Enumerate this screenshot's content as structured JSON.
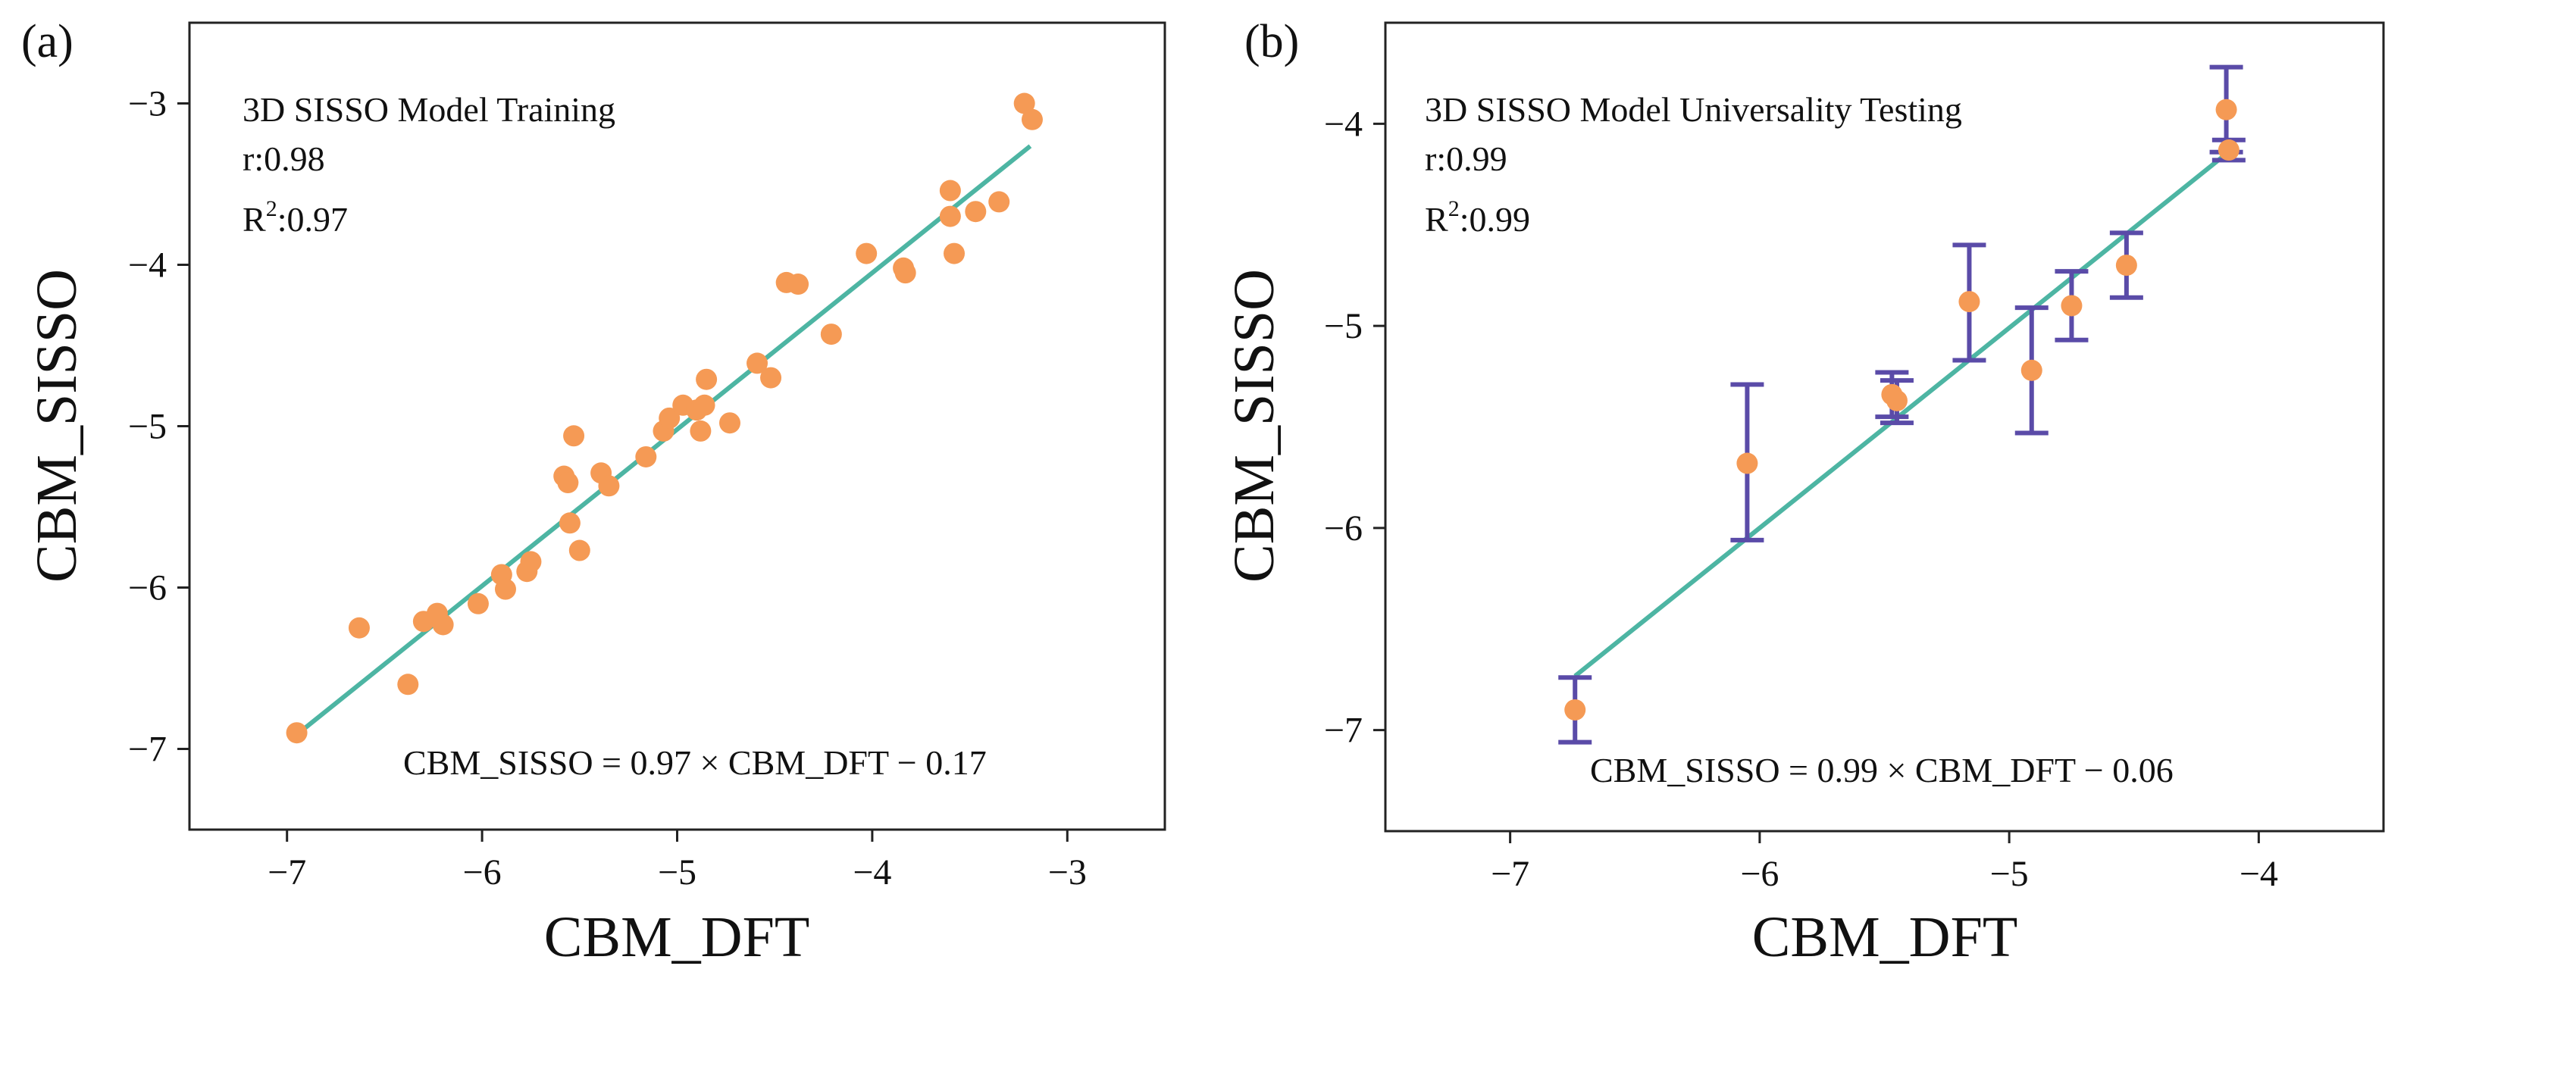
{
  "colors": {
    "point": "#F59A55",
    "fit_line": "#4DB5A3",
    "error_bar": "#5A4BA8",
    "axis": "#222222",
    "background": "#ffffff"
  },
  "chart_data": [
    {
      "type": "scatter",
      "panel_label": "(a)",
      "title": "3D SISSO Model Training",
      "stats": [
        "r:0.98",
        "R2:0.97"
      ],
      "r_text": "r:0.98",
      "r2_prefix": "R",
      "r2_sup": "2",
      "r2_value": ":0.97",
      "equation": "CBM_SISSO = 0.97 × CBM_DFT − 0.17",
      "xlabel": "CBM_DFT",
      "ylabel": "CBM_SISSO",
      "xlim": [
        -7.5,
        -2.5
      ],
      "ylim": [
        -7.5,
        -2.5
      ],
      "xticks": [
        -7,
        -6,
        -5,
        -4,
        -3
      ],
      "yticks": [
        -7,
        -6,
        -5,
        -4,
        -3
      ],
      "xtick_labels": [
        "−7",
        "−6",
        "−5",
        "−4",
        "−3"
      ],
      "ytick_labels": [
        "−7",
        "−6",
        "−5",
        "−4",
        "−3"
      ],
      "grid": false,
      "fit": {
        "slope": 0.97,
        "intercept": -0.17,
        "x_range": [
          -6.95,
          -3.19
        ]
      },
      "points": [
        {
          "x": -6.95,
          "y": -6.9
        },
        {
          "x": -6.63,
          "y": -6.25
        },
        {
          "x": -6.38,
          "y": -6.6
        },
        {
          "x": -6.3,
          "y": -6.21
        },
        {
          "x": -6.23,
          "y": -6.16
        },
        {
          "x": -6.2,
          "y": -6.23
        },
        {
          "x": -6.02,
          "y": -6.1
        },
        {
          "x": -5.9,
          "y": -5.92
        },
        {
          "x": -5.88,
          "y": -6.01
        },
        {
          "x": -5.77,
          "y": -5.9
        },
        {
          "x": -5.75,
          "y": -5.84
        },
        {
          "x": -5.58,
          "y": -5.31
        },
        {
          "x": -5.56,
          "y": -5.35
        },
        {
          "x": -5.55,
          "y": -5.6
        },
        {
          "x": -5.53,
          "y": -5.06
        },
        {
          "x": -5.5,
          "y": -5.77
        },
        {
          "x": -5.39,
          "y": -5.29
        },
        {
          "x": -5.35,
          "y": -5.37
        },
        {
          "x": -5.16,
          "y": -5.19
        },
        {
          "x": -5.07,
          "y": -5.03
        },
        {
          "x": -5.04,
          "y": -4.95
        },
        {
          "x": -4.97,
          "y": -4.87
        },
        {
          "x": -4.9,
          "y": -4.9
        },
        {
          "x": -4.88,
          "y": -5.03
        },
        {
          "x": -4.86,
          "y": -4.87
        },
        {
          "x": -4.85,
          "y": -4.71
        },
        {
          "x": -4.73,
          "y": -4.98
        },
        {
          "x": -4.59,
          "y": -4.61
        },
        {
          "x": -4.52,
          "y": -4.7
        },
        {
          "x": -4.44,
          "y": -4.11
        },
        {
          "x": -4.38,
          "y": -4.12
        },
        {
          "x": -4.21,
          "y": -4.43
        },
        {
          "x": -4.03,
          "y": -3.93
        },
        {
          "x": -3.84,
          "y": -4.02
        },
        {
          "x": -3.83,
          "y": -4.05
        },
        {
          "x": -3.6,
          "y": -3.54
        },
        {
          "x": -3.6,
          "y": -3.7
        },
        {
          "x": -3.58,
          "y": -3.93
        },
        {
          "x": -3.47,
          "y": -3.67
        },
        {
          "x": -3.35,
          "y": -3.61
        },
        {
          "x": -3.22,
          "y": -3.0
        },
        {
          "x": -3.18,
          "y": -3.1
        }
      ]
    },
    {
      "type": "scatter",
      "panel_label": "(b)",
      "title": "3D SISSO Model Universality Testing",
      "stats": [
        "r:0.99",
        "R2:0.99"
      ],
      "r_text": "r:0.99",
      "r2_prefix": "R",
      "r2_sup": "2",
      "r2_value": ":0.99",
      "equation": "CBM_SISSO = 0.99 × CBM_DFT − 0.06",
      "xlabel": "CBM_DFT",
      "ylabel": "CBM_SISSO",
      "xlim": [
        -7.5,
        -3.5
      ],
      "ylim": [
        -7.5,
        -3.5
      ],
      "xticks": [
        -7,
        -6,
        -5,
        -4
      ],
      "yticks": [
        -7,
        -6,
        -5,
        -4
      ],
      "xtick_labels": [
        "−7",
        "−6",
        "−5",
        "−4"
      ],
      "ytick_labels": [
        "−7",
        "−6",
        "−5",
        "−4"
      ],
      "grid": false,
      "fit": {
        "slope": 0.99,
        "intercept": -0.06,
        "x_range": [
          -6.74,
          -4.12
        ]
      },
      "points": [
        {
          "x": -6.74,
          "y": -6.9,
          "err_low": -7.06,
          "err_high": -6.74
        },
        {
          "x": -6.05,
          "y": -5.68,
          "err_low": -6.06,
          "err_high": -5.29
        },
        {
          "x": -5.47,
          "y": -5.34,
          "err_low": -5.45,
          "err_high": -5.23
        },
        {
          "x": -5.45,
          "y": -5.37,
          "err_low": -5.48,
          "err_high": -5.27
        },
        {
          "x": -5.16,
          "y": -4.88,
          "err_low": -5.17,
          "err_high": -4.6
        },
        {
          "x": -4.91,
          "y": -5.22,
          "err_low": -5.53,
          "err_high": -4.91
        },
        {
          "x": -4.75,
          "y": -4.9,
          "err_low": -5.07,
          "err_high": -4.73
        },
        {
          "x": -4.53,
          "y": -4.7,
          "err_low": -4.86,
          "err_high": -4.54
        },
        {
          "x": -4.13,
          "y": -3.93,
          "err_low": -4.14,
          "err_high": -3.72
        },
        {
          "x": -4.12,
          "y": -4.13,
          "err_low": -4.18,
          "err_high": -4.08
        }
      ]
    }
  ]
}
